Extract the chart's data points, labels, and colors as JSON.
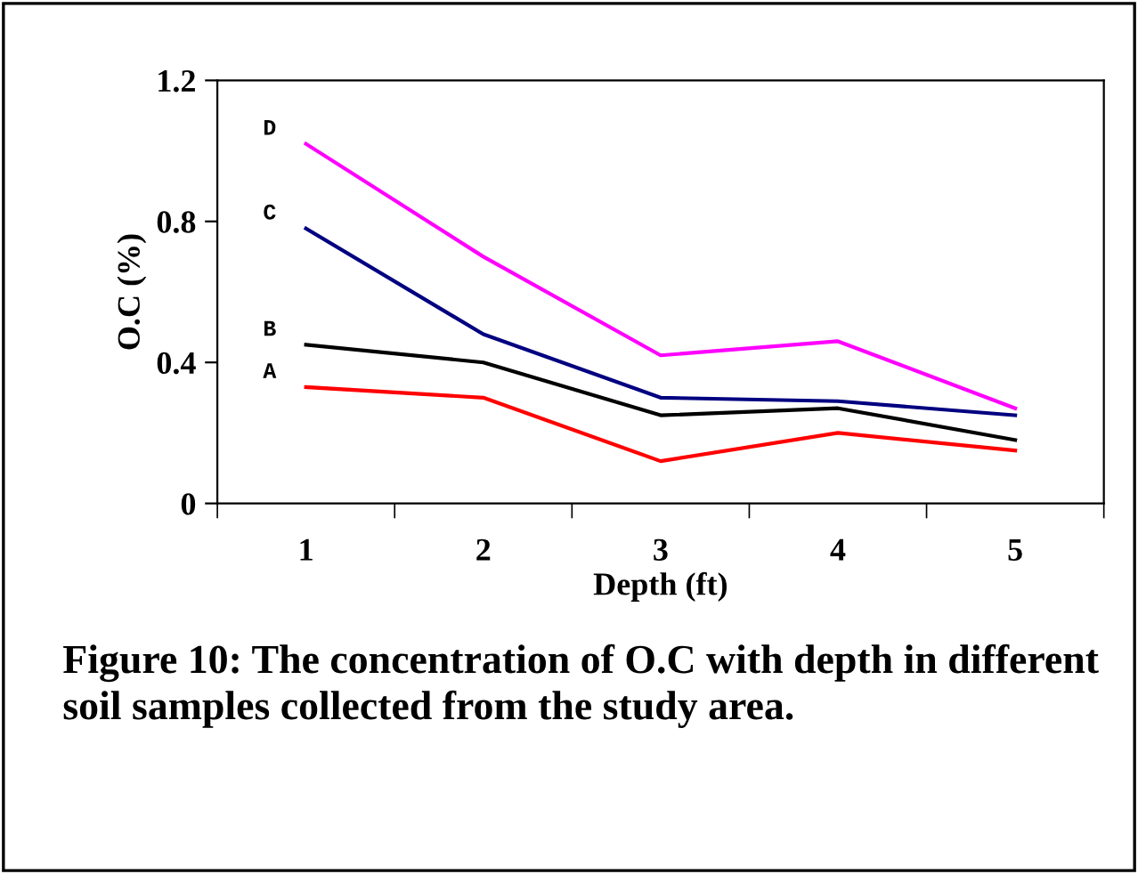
{
  "chart_data": {
    "type": "line",
    "xlabel": "Depth (ft)",
    "ylabel": "O.C (%)",
    "categories": [
      "1",
      "2",
      "3",
      "4",
      "5"
    ],
    "series": [
      {
        "name": "A",
        "color": "#ff0000",
        "values": [
          0.33,
          0.3,
          0.12,
          0.2,
          0.15
        ]
      },
      {
        "name": "B",
        "color": "#000000",
        "values": [
          0.45,
          0.4,
          0.25,
          0.27,
          0.18
        ]
      },
      {
        "name": "C",
        "color": "#000080",
        "values": [
          0.78,
          0.48,
          0.3,
          0.29,
          0.25
        ]
      },
      {
        "name": "D",
        "color": "#ff00ff",
        "values": [
          1.02,
          0.7,
          0.42,
          0.46,
          0.27
        ]
      }
    ],
    "ylim": [
      0,
      1.2
    ],
    "yticks": [
      0,
      0.4,
      0.8,
      1.2
    ],
    "grid": false,
    "legend": false,
    "marker": "none",
    "line_style": "solid",
    "annotations": [
      "Figure 10: The concentration of O.C with depth in different soil samples collected from the study area."
    ]
  }
}
